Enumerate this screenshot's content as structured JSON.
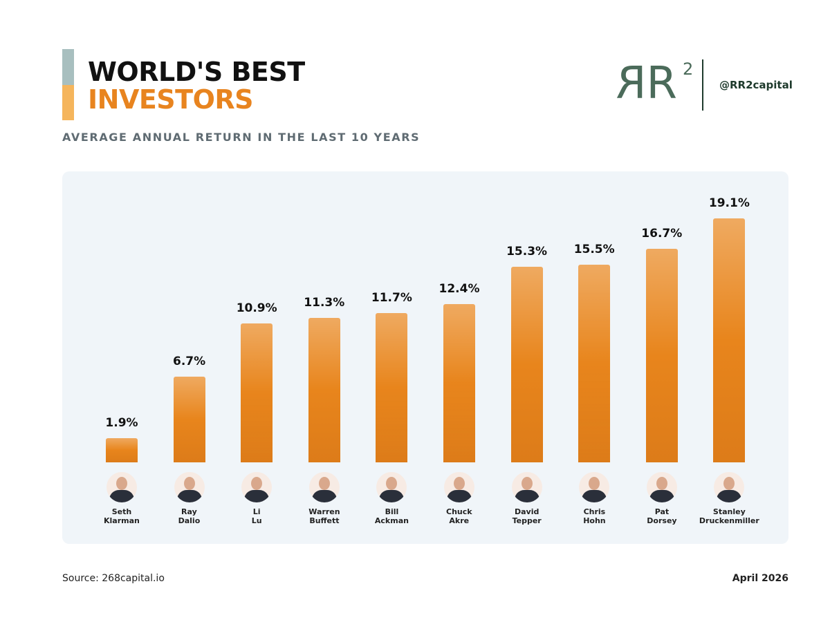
{
  "header": {
    "title_line1": "WORLD'S BEST",
    "title_line2": "INVESTORS",
    "subtitle": "AVERAGE ANNUAL RETURN IN THE LAST 10 YEARS",
    "logo": [
      "R",
      "R",
      "2"
    ],
    "handle": "@RR2capital"
  },
  "chart_data": {
    "type": "bar",
    "categories": [
      "Seth Klarman",
      "Ray Dalio",
      "Li Lu",
      "Warren Buffett",
      "Bill Ackman",
      "Chuck Akre",
      "David Tepper",
      "Chris Hohn",
      "Pat Dorsey",
      "Stanley Druckenmiller"
    ],
    "values": [
      1.9,
      6.7,
      10.9,
      11.3,
      11.7,
      12.4,
      15.3,
      15.5,
      16.7,
      19.1
    ],
    "value_labels": [
      "1.9%",
      "6.7%",
      "10.9%",
      "11.3%",
      "11.7%",
      "12.4%",
      "15.3%",
      "15.5%",
      "16.7%",
      "19.1%"
    ],
    "color": "#e8851c"
  },
  "footer": {
    "source": "Source: 268capital.io",
    "date": "April 2026"
  }
}
